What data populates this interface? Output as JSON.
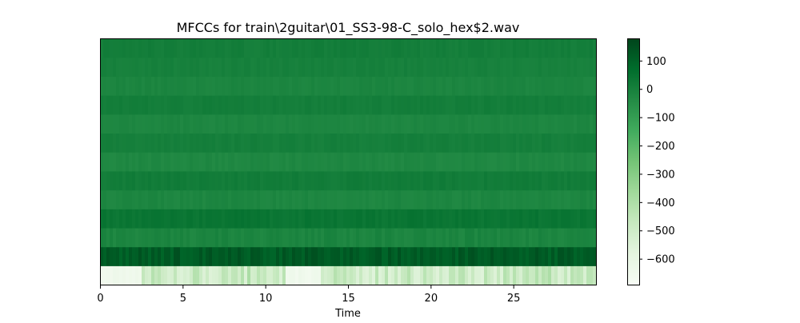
{
  "chart_data": {
    "type": "heatmap",
    "title": "MFCCs for train\\2guitar\\01_SS3-98-C_solo_hex$2.wav",
    "xlabel": "Time",
    "ylabel": "",
    "xlim": [
      0,
      30
    ],
    "x_ticks": [
      0,
      5,
      10,
      15,
      20,
      25
    ],
    "x_tick_labels": [
      "0",
      "5",
      "10",
      "15",
      "20",
      "25"
    ],
    "n_coefficients": 13,
    "colormap": "Greens",
    "colorbar": {
      "range": [
        -690,
        180
      ],
      "ticks": [
        100,
        0,
        -100,
        -200,
        -300,
        -400,
        -500,
        -600
      ],
      "tick_labels": [
        "100",
        "0",
        "−100",
        "−200",
        "−300",
        "−400",
        "−500",
        "−600"
      ]
    },
    "row_means": [
      -520,
      120,
      -15,
      40,
      -20,
      15,
      -25,
      5,
      -20,
      10,
      -15,
      0,
      10
    ],
    "row_variation": [
      70,
      30,
      15,
      12,
      10,
      10,
      9,
      9,
      8,
      8,
      8,
      8,
      10
    ],
    "colors": {
      "low": "#f7fcf5",
      "high": "#00441b"
    }
  }
}
